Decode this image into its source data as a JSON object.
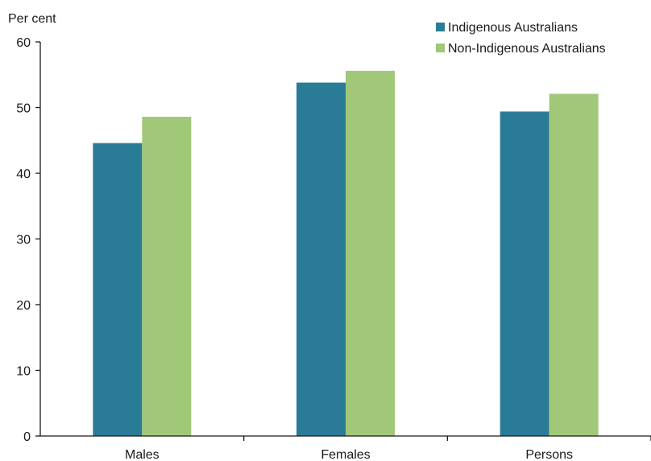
{
  "chart_data": {
    "type": "bar",
    "ylabel": "Per cent",
    "categories": [
      "Males",
      "Females",
      "Persons"
    ],
    "ylim": [
      0,
      60
    ],
    "yticks": [
      0,
      10,
      20,
      30,
      40,
      50,
      60
    ],
    "grid": false,
    "legend_position": "top-right",
    "series": [
      {
        "name": "Indigenous Australians",
        "color": "#2a7b96",
        "values": [
          44.6,
          53.8,
          49.4
        ]
      },
      {
        "name": "Non-Indigenous Australians",
        "color": "#a0c878",
        "values": [
          48.6,
          55.6,
          52.1
        ]
      }
    ]
  }
}
